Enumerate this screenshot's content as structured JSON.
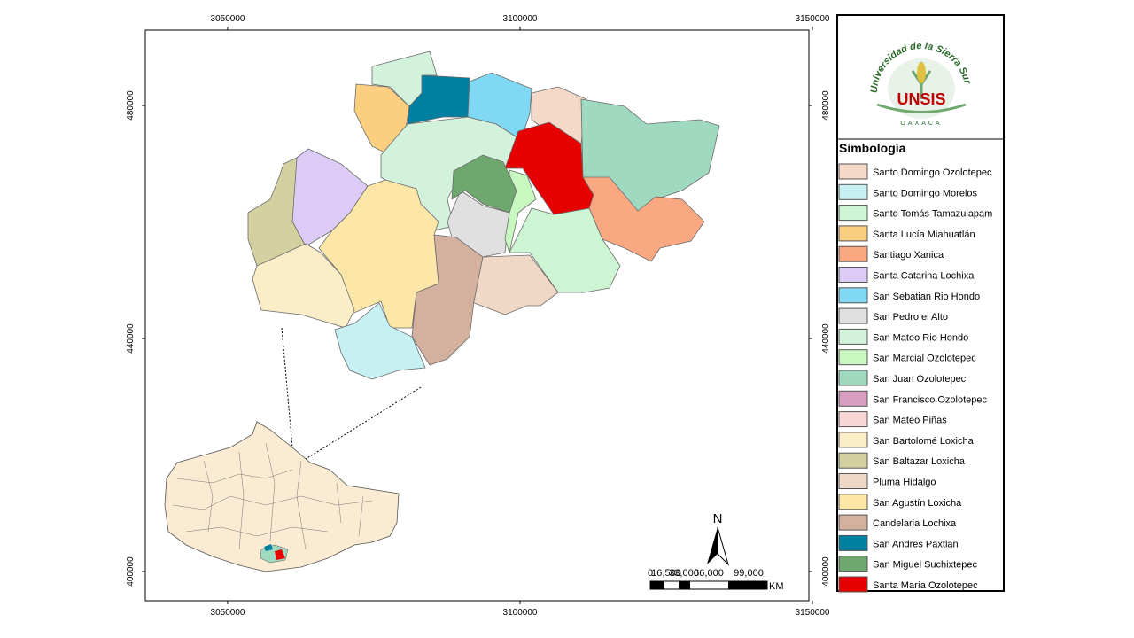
{
  "map": {
    "x_ticks": [
      "3050000",
      "3100000",
      "3150000"
    ],
    "y_ticks": [
      "480000",
      "440000",
      "400000"
    ],
    "north": "N",
    "scale_bar": {
      "labels": [
        "0",
        "16,500",
        "33,000",
        "66,000",
        "99,000"
      ],
      "unit": "KM"
    },
    "logo": {
      "university": "Universidad de la Sierra Sur",
      "acronym": "UNSIS",
      "state": "OAXACA"
    },
    "legend": {
      "title": "Simbología",
      "items": [
        {
          "label": "Santo Domingo Ozolotepec",
          "color": "#f5d9c8"
        },
        {
          "label": "Santo Domingo Morelos",
          "color": "#c6f0f2"
        },
        {
          "label": "Santo Tomás Tamazulapam",
          "color": "#cdf5d4"
        },
        {
          "label": "Santa Lucía Miahuatlán",
          "color": "#fccf80"
        },
        {
          "label": "Santiago Xanica",
          "color": "#f9a882"
        },
        {
          "label": "Santa Catarina Lochixa",
          "color": "#dcccf5"
        },
        {
          "label": "San Sebatian Rio Hondo",
          "color": "#80d8f5"
        },
        {
          "label": "San Pedro el Alto",
          "color": "#e0e0e0"
        },
        {
          "label": "San Mateo Rio Hondo",
          "color": "#d2f2dc"
        },
        {
          "label": "San Marcial Ozolotepec",
          "color": "#c8f7c0"
        },
        {
          "label": "San Juan Ozolotepec",
          "color": "#9fd9c0"
        },
        {
          "label": "San Francisco Ozolotepec",
          "color": "#d99dc0"
        },
        {
          "label": "San Mateo Piñas",
          "color": "#f9d6d6"
        },
        {
          "label": "San Bartolomé Loxicha",
          "color": "#faedc8"
        },
        {
          "label": "San Baltazar Loxicha",
          "color": "#d4d1a0"
        },
        {
          "label": "Pluma Hidalgo",
          "color": "#f0d8c6"
        },
        {
          "label": "San Agustín Loxicha",
          "color": "#fce6a8"
        },
        {
          "label": "Candelaria Lochixa",
          "color": "#d4b09e"
        },
        {
          "label": "San Andres Paxtlan",
          "color": "#0080a0"
        },
        {
          "label": "San Miguel Suchixtepec",
          "color": "#6fa86f"
        },
        {
          "label": "Santa María Ozolotepec",
          "color": "#e60000"
        }
      ]
    }
  }
}
